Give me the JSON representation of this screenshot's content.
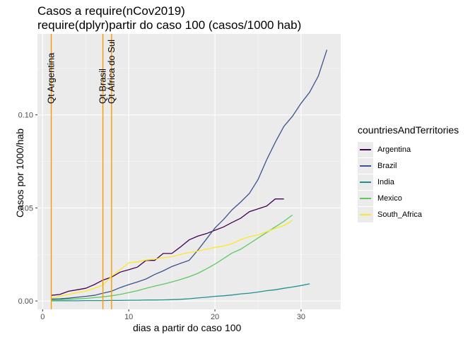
{
  "title": "Casos a require(nCov2019)",
  "subtitle": "require(dplyr)partir do caso 100 (casos/1000 hab)",
  "chart_data": {
    "type": "line",
    "xlabel": "dias a partir do caso 100",
    "ylabel": "Casos por 1000/hab",
    "xlim": [
      -0.6,
      34.6
    ],
    "ylim": [
      -0.0045,
      0.1435
    ],
    "x_ticks": [
      0,
      10,
      20,
      30
    ],
    "y_ticks": [
      0.0,
      0.05,
      0.1
    ],
    "x_tick_labels": [
      "0",
      "10",
      "20",
      "30"
    ],
    "y_tick_labels": [
      "0.00",
      "0.05",
      "0.10"
    ],
    "grid": true,
    "legend_title": "countriesAndTerritories",
    "legend_position": "right",
    "series": [
      {
        "name": "Argentina",
        "color": "#440154",
        "x": [
          1,
          2,
          3,
          4,
          5,
          6,
          7,
          8,
          9,
          10,
          11,
          12,
          13,
          14,
          15,
          16,
          17,
          18,
          19,
          20,
          21,
          22,
          23,
          24,
          25,
          26,
          27,
          28
        ],
        "y": [
          0.003,
          0.0035,
          0.0052,
          0.006,
          0.0068,
          0.0088,
          0.0112,
          0.0128,
          0.0155,
          0.0168,
          0.0182,
          0.0218,
          0.0218,
          0.0255,
          0.0255,
          0.029,
          0.0328,
          0.0348,
          0.0362,
          0.038,
          0.0398,
          0.0422,
          0.0445,
          0.048,
          0.0495,
          0.051,
          0.0548,
          0.0548
        ]
      },
      {
        "name": "Brazil",
        "color": "#3b528b",
        "x": [
          1,
          2,
          3,
          4,
          5,
          6,
          7,
          8,
          9,
          10,
          11,
          12,
          13,
          14,
          15,
          16,
          17,
          18,
          19,
          20,
          21,
          22,
          23,
          24,
          25,
          26,
          27,
          28,
          29,
          30,
          31,
          32,
          33
        ],
        "y": [
          0.001,
          0.0012,
          0.0015,
          0.002,
          0.0025,
          0.003,
          0.0042,
          0.0052,
          0.0072,
          0.0088,
          0.0102,
          0.0118,
          0.0142,
          0.0162,
          0.0185,
          0.0202,
          0.0218,
          0.0272,
          0.0332,
          0.0392,
          0.0438,
          0.049,
          0.0532,
          0.0578,
          0.0652,
          0.0758,
          0.0852,
          0.0938,
          0.0992,
          0.1062,
          0.1122,
          0.1208,
          0.135
        ]
      },
      {
        "name": "India",
        "color": "#21908d",
        "x": [
          1,
          2,
          3,
          4,
          5,
          6,
          7,
          8,
          9,
          10,
          11,
          12,
          13,
          14,
          15,
          16,
          17,
          18,
          19,
          20,
          21,
          22,
          23,
          24,
          25,
          26,
          27,
          28,
          29,
          30,
          31
        ],
        "y": [
          0.0001,
          0.0001,
          0.0001,
          0.0001,
          0.0002,
          0.0002,
          0.0002,
          0.0003,
          0.0003,
          0.0004,
          0.0004,
          0.0005,
          0.0005,
          0.0006,
          0.0007,
          0.0009,
          0.0012,
          0.0016,
          0.002,
          0.0025,
          0.0028,
          0.0032,
          0.0038,
          0.0042,
          0.0048,
          0.0055,
          0.006,
          0.0068,
          0.0075,
          0.0083,
          0.0092
        ]
      },
      {
        "name": "Mexico",
        "color": "#5dc863",
        "x": [
          1,
          2,
          3,
          4,
          5,
          6,
          7,
          8,
          9,
          10,
          11,
          12,
          13,
          14,
          15,
          16,
          17,
          18,
          19,
          20,
          21,
          22,
          23,
          24,
          25,
          26,
          27,
          28,
          29
        ],
        "y": [
          0.0005,
          0.0007,
          0.0009,
          0.0011,
          0.0014,
          0.0018,
          0.0022,
          0.0028,
          0.0035,
          0.0045,
          0.0055,
          0.0068,
          0.008,
          0.009,
          0.0102,
          0.0115,
          0.013,
          0.0148,
          0.0172,
          0.0198,
          0.0228,
          0.0258,
          0.0278,
          0.0308,
          0.0338,
          0.0368,
          0.0398,
          0.0428,
          0.0462
        ]
      },
      {
        "name": "South_Africa",
        "color": "#fde725",
        "x": [
          1,
          2,
          3,
          4,
          5,
          6,
          7,
          8,
          9,
          10,
          11,
          12,
          13,
          14,
          15,
          16,
          17,
          18,
          19,
          20,
          21,
          22,
          23,
          24,
          25,
          26,
          27,
          28,
          29
        ],
        "y": [
          0.0015,
          0.0025,
          0.0035,
          0.0045,
          0.0052,
          0.0068,
          0.0085,
          0.0132,
          0.0168,
          0.0205,
          0.021,
          0.022,
          0.0225,
          0.0232,
          0.0238,
          0.025,
          0.026,
          0.0268,
          0.0278,
          0.0288,
          0.0295,
          0.0308,
          0.033,
          0.0345,
          0.0355,
          0.0372,
          0.039,
          0.0405,
          0.0432
        ]
      }
    ],
    "vlines": [
      {
        "x": 1,
        "label": "Qt Argentina",
        "color": "#ff9900"
      },
      {
        "x": 7,
        "label": "Qt Brasil",
        "color": "#ff9900"
      },
      {
        "x": 8,
        "label": "Qt África do Sul",
        "color": "#ff9900"
      }
    ]
  }
}
